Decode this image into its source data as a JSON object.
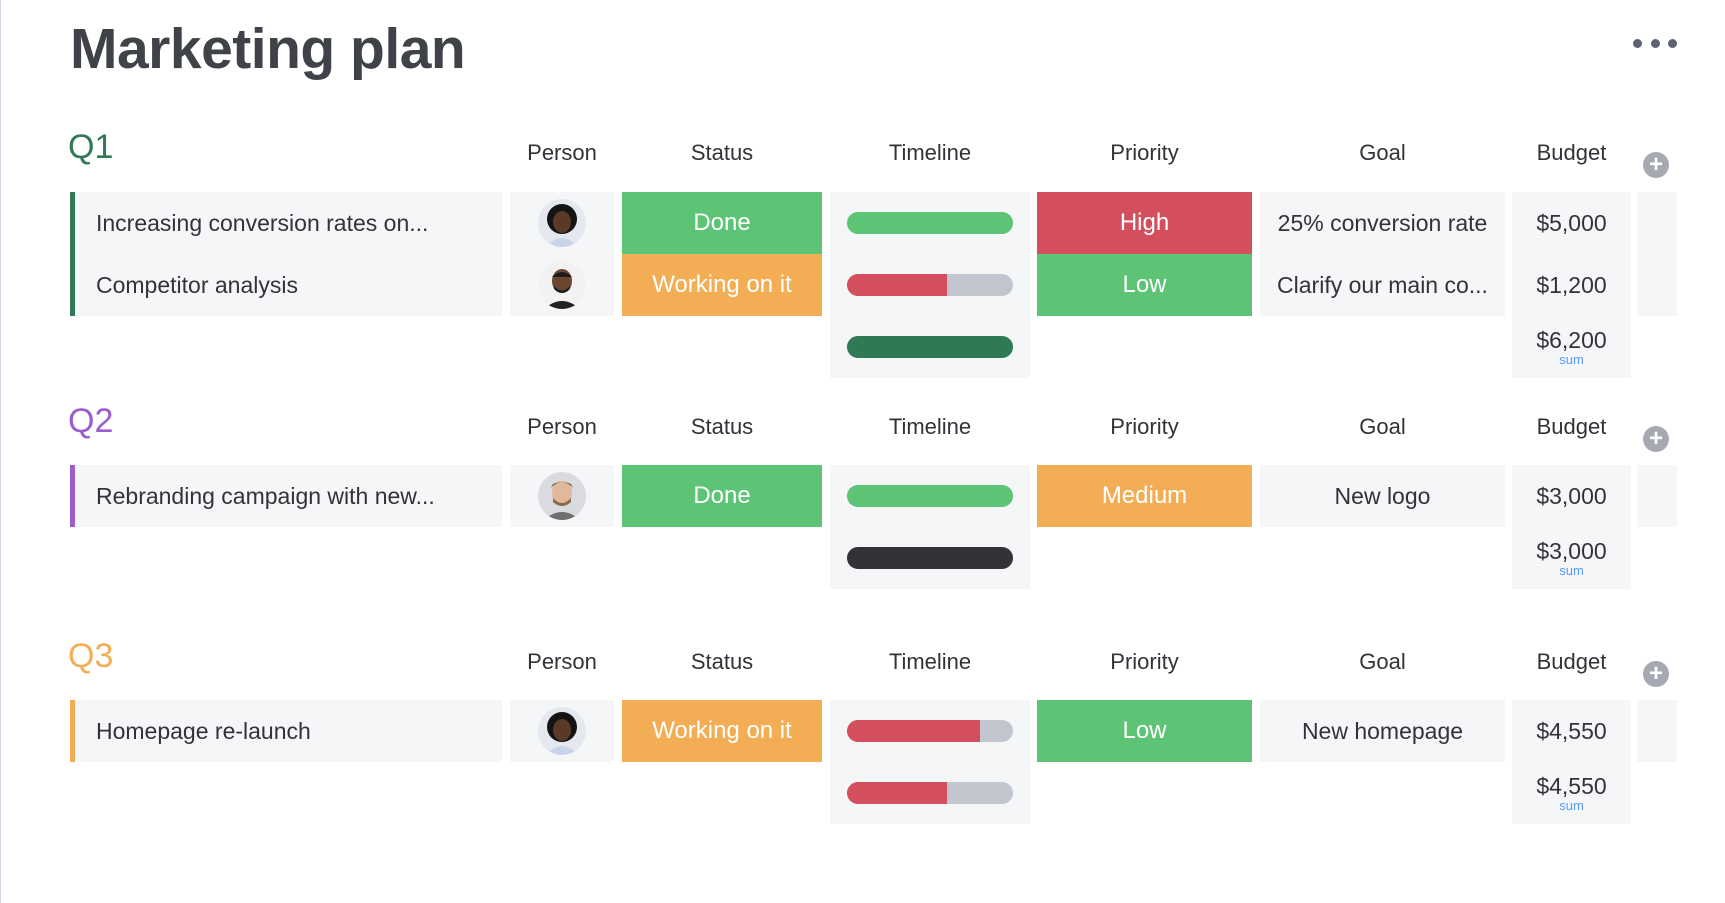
{
  "page": {
    "title": "Marketing plan",
    "more_icon": "more-horizontal-icon"
  },
  "columns": {
    "person": "Person",
    "status": "Status",
    "timeline": "Timeline",
    "priority": "Priority",
    "goal": "Goal",
    "budget": "Budget",
    "add_icon": "plus-circle-icon"
  },
  "colors": {
    "done": "#5dc476",
    "working": "#f3ae55",
    "high": "#d44f5e",
    "low": "#5dc476",
    "medium": "#f3ae55",
    "q1": "#2f7a55",
    "q2": "#9b5ccf",
    "q3": "#f3ae55"
  },
  "groups": [
    {
      "title": "Q1",
      "rows": [
        {
          "item": "Increasing conversion rates on...",
          "person": "avatar-woman",
          "status": "Done",
          "timeline": {
            "progress": 1.0,
            "color": "#5dc476"
          },
          "priority": "High",
          "goal": "25% conversion rate",
          "budget": "$5,000"
        },
        {
          "item": "Competitor analysis",
          "person": "avatar-man",
          "status": "Working on it",
          "timeline": {
            "progress": 0.6,
            "color": "#d44f5e"
          },
          "priority": "Low",
          "goal": "Clarify our main co...",
          "budget": "$1,200"
        }
      ],
      "summary": {
        "timeline": {
          "progress": 1.0,
          "color": "#2f7a55"
        },
        "budget": "$6,200",
        "budget_label": "sum"
      }
    },
    {
      "title": "Q2",
      "rows": [
        {
          "item": "Rebranding campaign with new...",
          "person": "avatar-man-beard",
          "status": "Done",
          "timeline": {
            "progress": 1.0,
            "color": "#5dc476"
          },
          "priority": "Medium",
          "goal": "New logo",
          "budget": "$3,000"
        }
      ],
      "summary": {
        "timeline": {
          "progress": 1.0,
          "color": "#323338"
        },
        "budget": "$3,000",
        "budget_label": "sum"
      }
    },
    {
      "title": "Q3",
      "rows": [
        {
          "item": "Homepage re-launch",
          "person": "avatar-woman",
          "status": "Working on it",
          "timeline": {
            "progress": 0.8,
            "color": "#d44f5e"
          },
          "priority": "Low",
          "goal": "New homepage",
          "budget": "$4,550"
        }
      ],
      "summary": {
        "timeline": {
          "progress": 0.6,
          "color": "#d44f5e"
        },
        "budget": "$4,550",
        "budget_label": "sum"
      }
    }
  ]
}
